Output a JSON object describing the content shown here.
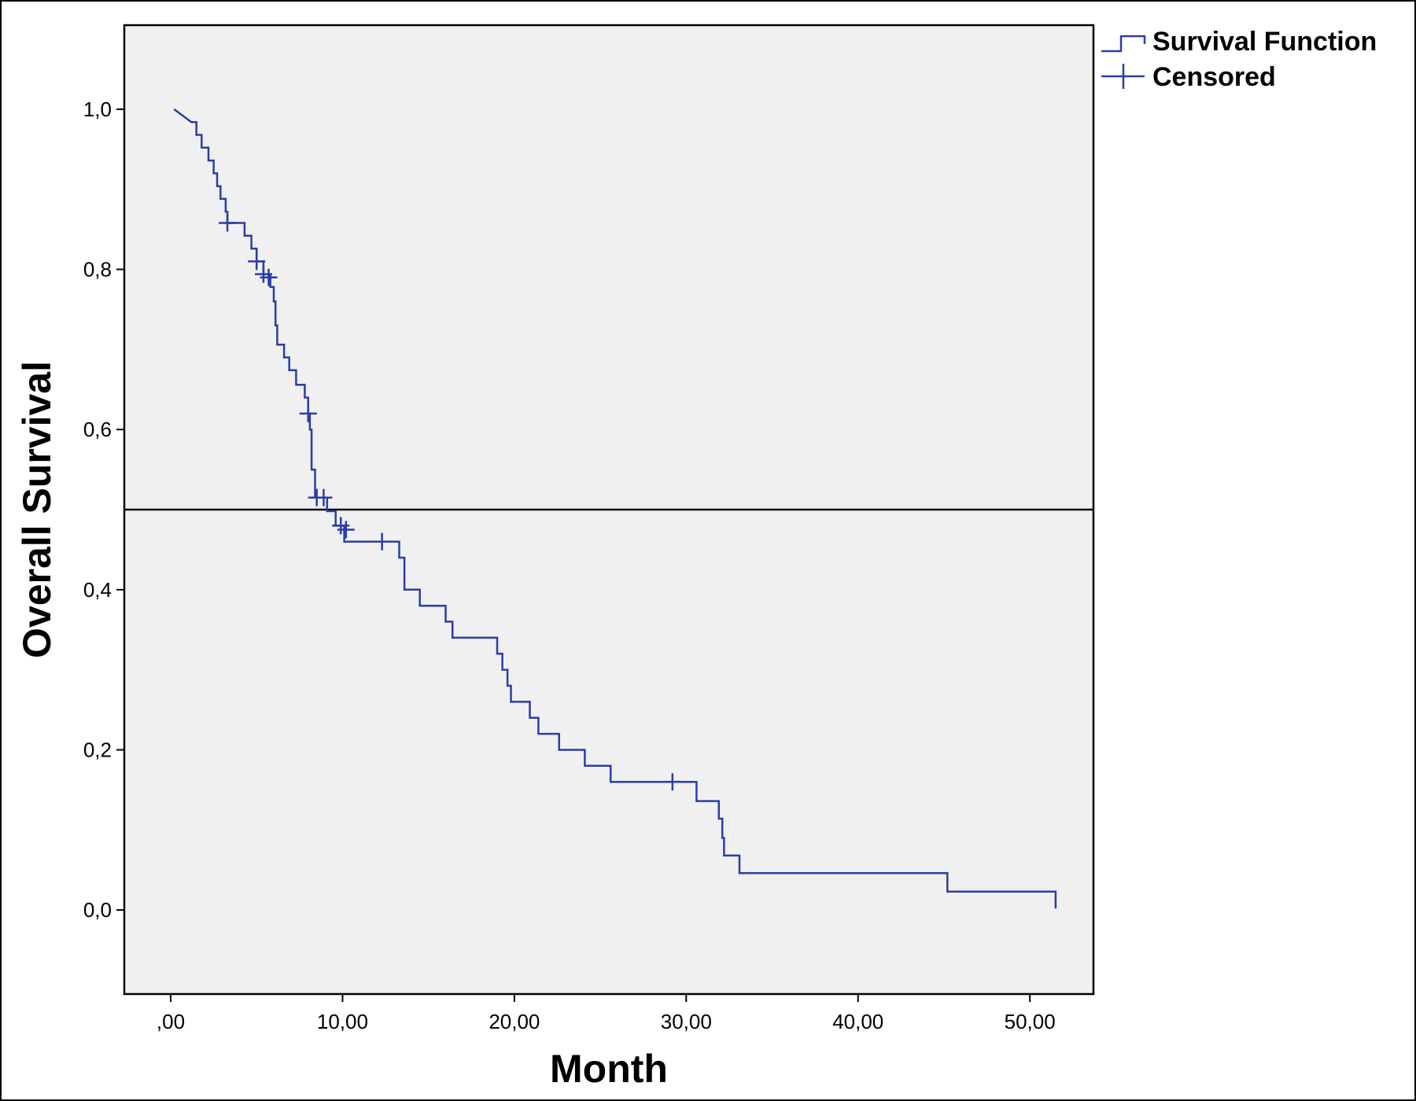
{
  "chart_data": {
    "type": "line",
    "xlabel": "Month",
    "ylabel": "Overall Survival",
    "xlim": [
      -2.7,
      53.7
    ],
    "ylim": [
      -0.105,
      1.105
    ],
    "x_ticks": [
      0,
      10,
      20,
      30,
      40,
      50
    ],
    "x_tick_labels": [
      ",00",
      "10,00",
      "20,00",
      "30,00",
      "40,00",
      "50,00"
    ],
    "y_ticks": [
      0,
      0.2,
      0.4,
      0.6,
      0.8,
      1.0
    ],
    "y_tick_labels": [
      "0,0",
      "0,2",
      "0,4",
      "0,6",
      "0,8",
      "1,0"
    ],
    "reference_line_y": 0.5,
    "grid": false,
    "legend_position": "top-right, outside plot",
    "plot_background": "#f0f0f0",
    "series_color": "#2a3da8",
    "series": [
      {
        "name": "Survival Function",
        "steps": [
          [
            0.2,
            1.0
          ],
          [
            1.2,
            0.984
          ],
          [
            1.5,
            0.984
          ],
          [
            1.5,
            0.968
          ],
          [
            1.8,
            0.968
          ],
          [
            1.8,
            0.952
          ],
          [
            2.2,
            0.952
          ],
          [
            2.2,
            0.936
          ],
          [
            2.5,
            0.936
          ],
          [
            2.5,
            0.92
          ],
          [
            2.7,
            0.92
          ],
          [
            2.7,
            0.904
          ],
          [
            2.9,
            0.904
          ],
          [
            2.9,
            0.888
          ],
          [
            3.2,
            0.888
          ],
          [
            3.2,
            0.872
          ],
          [
            3.3,
            0.872
          ],
          [
            3.3,
            0.858
          ],
          [
            4.3,
            0.858
          ],
          [
            4.3,
            0.842
          ],
          [
            4.7,
            0.842
          ],
          [
            4.7,
            0.826
          ],
          [
            5.0,
            0.826
          ],
          [
            5.0,
            0.81
          ],
          [
            5.4,
            0.81
          ],
          [
            5.4,
            0.794
          ],
          [
            5.8,
            0.794
          ],
          [
            5.8,
            0.778
          ],
          [
            6.0,
            0.778
          ],
          [
            6.0,
            0.76
          ],
          [
            6.1,
            0.76
          ],
          [
            6.1,
            0.73
          ],
          [
            6.2,
            0.73
          ],
          [
            6.2,
            0.706
          ],
          [
            6.6,
            0.706
          ],
          [
            6.6,
            0.69
          ],
          [
            6.9,
            0.69
          ],
          [
            6.9,
            0.674
          ],
          [
            7.3,
            0.674
          ],
          [
            7.3,
            0.656
          ],
          [
            7.8,
            0.656
          ],
          [
            7.8,
            0.64
          ],
          [
            8.0,
            0.64
          ],
          [
            8.0,
            0.62
          ],
          [
            8.1,
            0.62
          ],
          [
            8.1,
            0.6
          ],
          [
            8.2,
            0.6
          ],
          [
            8.2,
            0.55
          ],
          [
            8.4,
            0.55
          ],
          [
            8.4,
            0.515
          ],
          [
            9.1,
            0.515
          ],
          [
            9.1,
            0.498
          ],
          [
            9.6,
            0.498
          ],
          [
            9.6,
            0.48
          ],
          [
            10.1,
            0.48
          ],
          [
            10.1,
            0.46
          ],
          [
            13.3,
            0.46
          ],
          [
            13.3,
            0.44
          ],
          [
            13.6,
            0.44
          ],
          [
            13.6,
            0.4
          ],
          [
            14.5,
            0.4
          ],
          [
            14.5,
            0.38
          ],
          [
            16.0,
            0.38
          ],
          [
            16.0,
            0.36
          ],
          [
            16.4,
            0.36
          ],
          [
            16.4,
            0.34
          ],
          [
            19.0,
            0.34
          ],
          [
            19.0,
            0.32
          ],
          [
            19.3,
            0.32
          ],
          [
            19.3,
            0.3
          ],
          [
            19.6,
            0.3
          ],
          [
            19.6,
            0.28
          ],
          [
            19.8,
            0.28
          ],
          [
            19.8,
            0.26
          ],
          [
            20.9,
            0.26
          ],
          [
            20.9,
            0.24
          ],
          [
            21.4,
            0.24
          ],
          [
            21.4,
            0.22
          ],
          [
            22.6,
            0.22
          ],
          [
            22.6,
            0.2
          ],
          [
            24.1,
            0.2
          ],
          [
            24.1,
            0.18
          ],
          [
            25.6,
            0.18
          ],
          [
            25.6,
            0.16
          ],
          [
            30.6,
            0.16
          ],
          [
            30.6,
            0.136
          ],
          [
            31.9,
            0.136
          ],
          [
            31.9,
            0.114
          ],
          [
            32.1,
            0.114
          ],
          [
            32.1,
            0.09
          ],
          [
            32.2,
            0.09
          ],
          [
            32.2,
            0.068
          ],
          [
            33.1,
            0.068
          ],
          [
            33.1,
            0.046
          ],
          [
            45.2,
            0.046
          ],
          [
            45.2,
            0.023
          ],
          [
            51.5,
            0.023
          ],
          [
            51.5,
            0.002
          ]
        ]
      },
      {
        "name": "Censored",
        "points": [
          [
            3.3,
            0.858
          ],
          [
            5.0,
            0.81
          ],
          [
            5.4,
            0.794
          ],
          [
            5.7,
            0.79
          ],
          [
            8.0,
            0.62
          ],
          [
            8.5,
            0.515
          ],
          [
            8.9,
            0.515
          ],
          [
            9.9,
            0.48
          ],
          [
            10.2,
            0.475
          ],
          [
            12.3,
            0.46
          ],
          [
            29.2,
            0.16
          ]
        ]
      }
    ]
  }
}
